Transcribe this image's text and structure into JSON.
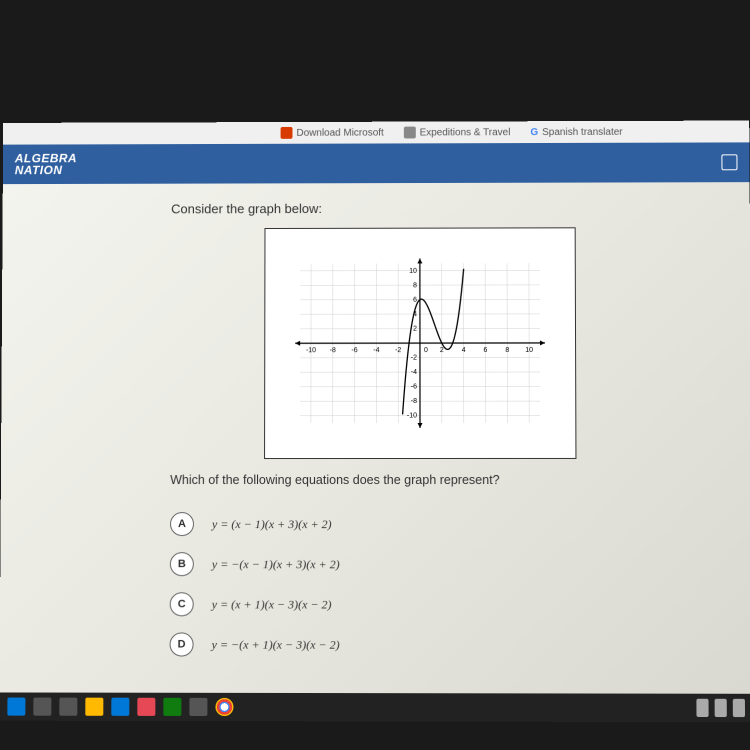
{
  "bookmarks": [
    {
      "label": "Download Microsoft",
      "color": "#d83b01"
    },
    {
      "label": "Expeditions & Travel",
      "color": "#888888"
    },
    {
      "label": "Spanish translater",
      "color": "#4285f4",
      "prefix": "G"
    }
  ],
  "logo": {
    "line1": "ALGEBRA",
    "line2": "NATION"
  },
  "prompt": "Consider the graph below:",
  "question": "Which of the following equations does the graph represent?",
  "options": [
    {
      "letter": "A",
      "eq": "y = (x − 1)(x + 3)(x + 2)"
    },
    {
      "letter": "B",
      "eq": "y = −(x − 1)(x + 3)(x + 2)"
    },
    {
      "letter": "C",
      "eq": "y = (x + 1)(x − 3)(x − 2)"
    },
    {
      "letter": "D",
      "eq": "y = −(x + 1)(x − 3)(x − 2)"
    }
  ],
  "graph": {
    "xlim": [
      -11,
      11
    ],
    "ylim": [
      -11,
      11
    ],
    "xticks": [
      -10,
      -8,
      -6,
      -4,
      -2,
      0,
      2,
      4,
      6,
      8,
      10
    ],
    "yticks": [
      -10,
      -8,
      -6,
      -4,
      -2,
      0,
      2,
      4,
      6,
      8,
      10
    ],
    "axis_color": "#000000",
    "tick_font": 7,
    "grid_color": "#d0d0d0",
    "curve_color": "#000000",
    "curve_width": 1.3,
    "curve_type": "cubic",
    "roots": [
      -1,
      2,
      3
    ],
    "arrow_size": 5
  }
}
